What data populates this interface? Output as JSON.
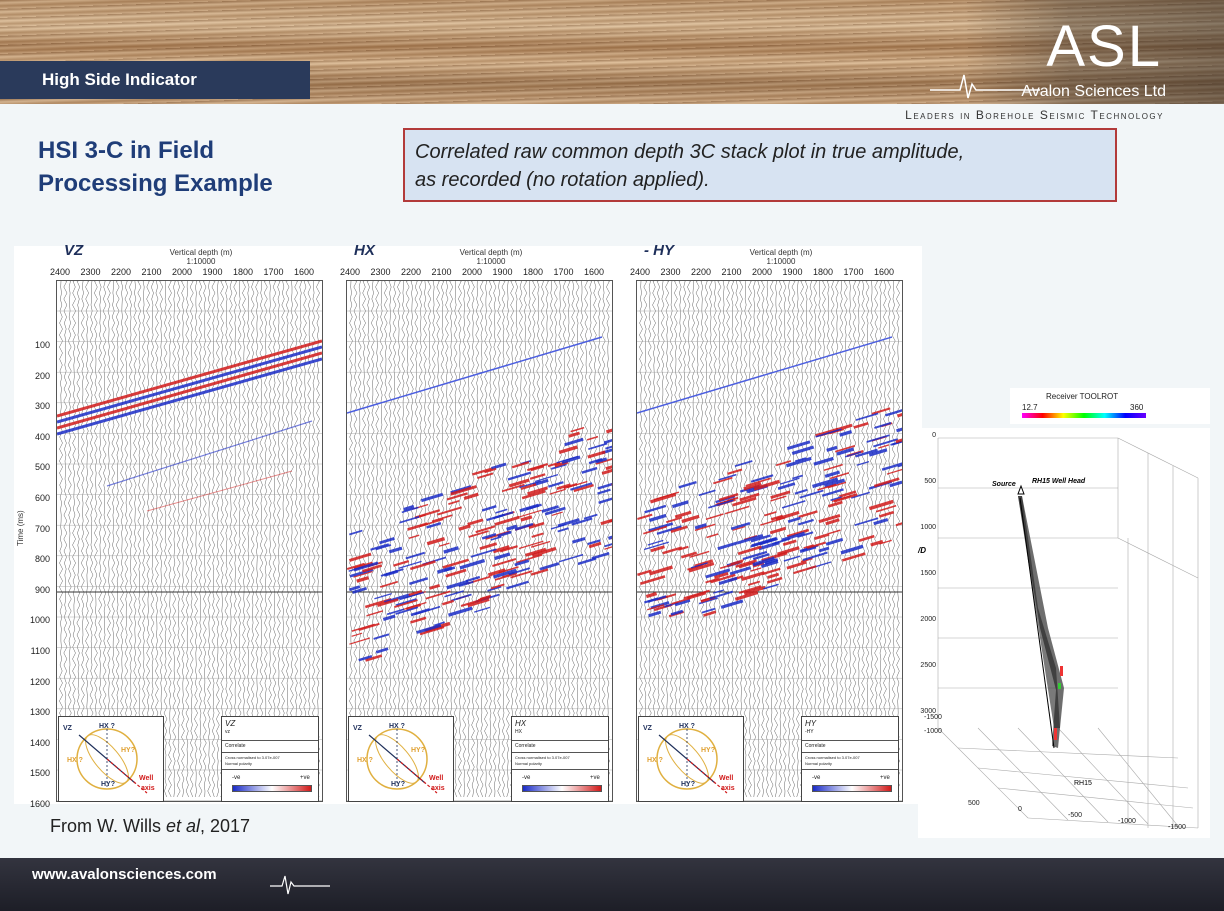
{
  "header": {
    "section_title": "High Side Indicator",
    "logo": "ASL",
    "company": "Avalon Sciences Ltd",
    "tagline": "Leaders in Borehole Seismic Technology"
  },
  "slide": {
    "heading_line1": "HSI 3-C in Field",
    "heading_line2": "Processing Example",
    "callout_line1": "Correlated raw common depth 3C stack plot in true amplitude,",
    "callout_line2": "as recorded (no rotation applied).",
    "citation_prefix": "From W. Wills ",
    "citation_italic": "et al",
    "citation_suffix": ", 2017"
  },
  "figure": {
    "panels": [
      {
        "label": "VZ",
        "legend_title": "VZ",
        "legend_line2": "vz"
      },
      {
        "label": "HX",
        "legend_title": "HX",
        "legend_line2": "HX"
      },
      {
        "label": "- HY",
        "legend_title": "HY",
        "legend_line2": "-HY"
      }
    ],
    "depth_label": "Vertical depth (m)",
    "scale": "1:10000",
    "depth_ticks": [
      "2400",
      "2300",
      "2200",
      "2100",
      "2000",
      "1900",
      "1800",
      "1700",
      "1600"
    ],
    "time_ticks": [
      "100",
      "200",
      "300",
      "400",
      "500",
      "600",
      "700",
      "800",
      "900",
      "1000",
      "1100",
      "1200",
      "1300",
      "1400",
      "1500",
      "1600"
    ],
    "time_axis_label": "Time (ms)",
    "legend_correlate": "Correlate",
    "legend_norm1": "Cross normalised to 3.07e-007",
    "legend_norm2": "Normal polarity",
    "legend_neg": "-ve",
    "legend_pos": "+ve",
    "compass": {
      "vz": "VZ",
      "hx": "HX ?",
      "hy1": "HY?",
      "hx2": "HX ?",
      "hy2": "HY?",
      "well": "Well",
      "axis": "axis"
    }
  },
  "model3d": {
    "colorbar_title": "Receiver TOOLROT",
    "colorbar_min": "12.7",
    "colorbar_max": "360",
    "source": "Source",
    "wellhead": "RH15 Well Head",
    "well_name": "RH15",
    "z_ticks": [
      "0",
      "500",
      "1000",
      "1500",
      "2000",
      "2500",
      "3000"
    ],
    "z_label": "/D",
    "x_ticks": [
      "500",
      "0",
      "-500",
      "-1000",
      "-1500"
    ],
    "y_ticks": [
      "-1500",
      "-1000"
    ]
  },
  "footer": {
    "url": "www.avalonsciences.com"
  },
  "colors": {
    "title_bar": "#2a3a5b",
    "heading": "#1f3d78",
    "callout_border": "#b23a3a",
    "callout_fill": "#d7e3f2",
    "red_wave": "#d11a1a",
    "blue_wave": "#1a2bc7"
  }
}
